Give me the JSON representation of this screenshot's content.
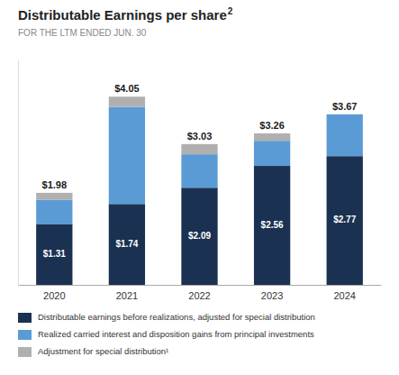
{
  "chart_data": {
    "type": "bar",
    "stacked": true,
    "data_labels": true,
    "tick_labels": "x",
    "grid": false,
    "title": "Distributable Earnings per share",
    "title_superscript": "2",
    "subtitle": "FOR THE LTM ENDED JUN. 30",
    "categories": [
      "2020",
      "2021",
      "2022",
      "2023",
      "2024"
    ],
    "series": [
      {
        "name": "Distributable earnings before realizations, adjusted for special distribution",
        "color": "#1a3151",
        "values": [
          1.31,
          1.74,
          2.09,
          2.56,
          2.77
        ],
        "value_labels": [
          "$1.31",
          "$1.74",
          "$2.09",
          "$2.56",
          "$2.77"
        ]
      },
      {
        "name": "Realized carried interest and disposition gains from principal investments",
        "color": "#5b9bd5",
        "values": [
          0.52,
          2.09,
          0.72,
          0.54,
          0.9
        ]
      },
      {
        "name": "Adjustment for special distribution¹",
        "color": "#b0b0b0",
        "values": [
          0.15,
          0.22,
          0.22,
          0.16,
          0.0
        ]
      }
    ],
    "totals": [
      1.98,
      4.05,
      3.03,
      3.26,
      3.67
    ],
    "total_labels": [
      "$1.98",
      "$4.05",
      "$3.03",
      "$3.26",
      "$3.67"
    ],
    "ylim": [
      0,
      4.85
    ]
  }
}
